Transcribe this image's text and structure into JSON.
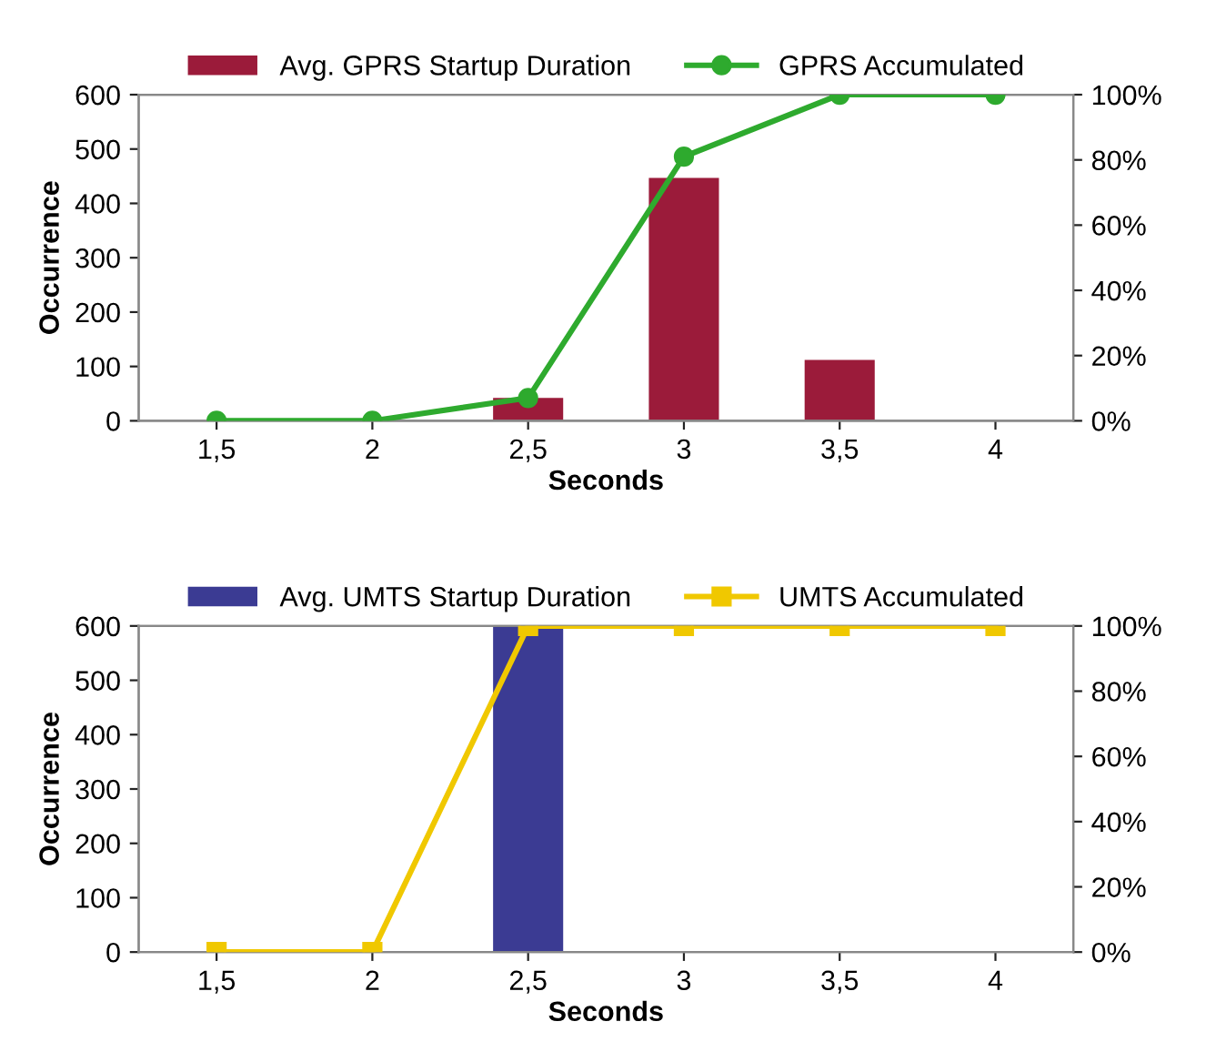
{
  "chart_data": [
    {
      "type": "bar",
      "categories": [
        "1,5",
        "2",
        "2,5",
        "3",
        "3,5",
        "4"
      ],
      "xlabel": "Seconds",
      "ylabel": "Occurrence",
      "legend": "top",
      "marker": "circle",
      "ylim": [
        0,
        600
      ],
      "yticks": [
        0,
        100,
        200,
        300,
        400,
        500,
        600
      ],
      "y2lim": [
        0,
        100
      ],
      "y2ticks": [
        {
          "value": 0,
          "label": "0%"
        },
        {
          "value": 20,
          "label": "20%"
        },
        {
          "value": 40,
          "label": "40%"
        },
        {
          "value": 60,
          "label": "60%"
        },
        {
          "value": 80,
          "label": "80%"
        },
        {
          "value": 100,
          "label": "100%"
        }
      ],
      "series": [
        {
          "name": "Avg. GPRS Startup Duration",
          "color": "#9b1b3a",
          "values": [
            0,
            0,
            42,
            447,
            112,
            0
          ]
        },
        {
          "name": "GPRS Accumulated",
          "type": "line",
          "axis": "y2",
          "color": "#2eaa2e",
          "values": [
            0,
            0,
            7,
            81,
            100,
            100
          ]
        }
      ]
    },
    {
      "type": "bar",
      "categories": [
        "1,5",
        "2",
        "2,5",
        "3",
        "3,5",
        "4"
      ],
      "xlabel": "Seconds",
      "ylabel": "Occurrence",
      "legend": "top",
      "marker": "square",
      "ylim": [
        0,
        600
      ],
      "yticks": [
        0,
        100,
        200,
        300,
        400,
        500,
        600
      ],
      "y2lim": [
        0,
        100
      ],
      "y2ticks": [
        {
          "value": 0,
          "label": "0%"
        },
        {
          "value": 20,
          "label": "20%"
        },
        {
          "value": 40,
          "label": "40%"
        },
        {
          "value": 60,
          "label": "60%"
        },
        {
          "value": 80,
          "label": "80%"
        },
        {
          "value": 100,
          "label": "100%"
        }
      ],
      "series": [
        {
          "name": "Avg. UMTS Startup Duration",
          "color": "#3b3b93",
          "values": [
            0,
            0,
            600,
            0,
            0,
            0
          ]
        },
        {
          "name": "UMTS Accumulated",
          "type": "line",
          "axis": "y2",
          "color": "#f0c800",
          "values": [
            0,
            0,
            100,
            100,
            100,
            100
          ]
        }
      ]
    }
  ]
}
